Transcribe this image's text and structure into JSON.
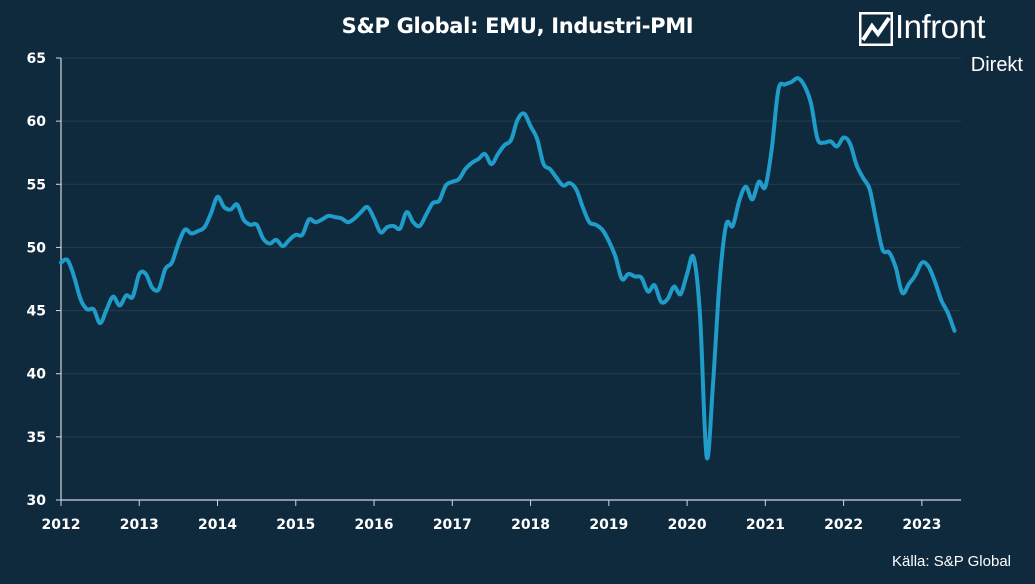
{
  "header": {
    "title": "S&P Global: EMU, Industri-PMI"
  },
  "brand": {
    "name": "Infront",
    "sub": "Direkt",
    "icon": "infront-logo-icon"
  },
  "footer": {
    "source": "Källa:  S&P Global"
  },
  "colors": {
    "background": "#0f2a3d",
    "line": "#1f9cc9",
    "axis": "#cfd8df",
    "text": "#ffffff"
  },
  "chart_data": {
    "type": "line",
    "title": "S&P Global: EMU, Industri-PMI",
    "xlabel": "",
    "ylabel": "",
    "ylim": [
      30,
      65
    ],
    "xlim": [
      "2012-01",
      "2023-07"
    ],
    "yticks": [
      30,
      35,
      40,
      45,
      50,
      55,
      60,
      65
    ],
    "xticks": [
      "2012",
      "2013",
      "2014",
      "2015",
      "2016",
      "2017",
      "2018",
      "2019",
      "2020",
      "2021",
      "2022",
      "2023"
    ],
    "grid": true,
    "legend": "none",
    "series": [
      {
        "x": [
          "2012-01",
          "2012-02",
          "2012-03",
          "2012-04",
          "2012-05",
          "2012-06",
          "2012-07",
          "2012-08",
          "2012-09",
          "2012-10",
          "2012-11",
          "2012-12",
          "2013-01",
          "2013-02",
          "2013-03",
          "2013-04",
          "2013-05",
          "2013-06",
          "2013-07",
          "2013-08",
          "2013-09",
          "2013-10",
          "2013-11",
          "2013-12",
          "2014-01",
          "2014-02",
          "2014-03",
          "2014-04",
          "2014-05",
          "2014-06",
          "2014-07",
          "2014-08",
          "2014-09",
          "2014-10",
          "2014-11",
          "2014-12",
          "2015-01",
          "2015-02",
          "2015-03",
          "2015-04",
          "2015-05",
          "2015-06",
          "2015-07",
          "2015-08",
          "2015-09",
          "2015-10",
          "2015-11",
          "2015-12",
          "2016-01",
          "2016-02",
          "2016-03",
          "2016-04",
          "2016-05",
          "2016-06",
          "2016-07",
          "2016-08",
          "2016-09",
          "2016-10",
          "2016-11",
          "2016-12",
          "2017-01",
          "2017-02",
          "2017-03",
          "2017-04",
          "2017-05",
          "2017-06",
          "2017-07",
          "2017-08",
          "2017-09",
          "2017-10",
          "2017-11",
          "2017-12",
          "2018-01",
          "2018-02",
          "2018-03",
          "2018-04",
          "2018-05",
          "2018-06",
          "2018-07",
          "2018-08",
          "2018-09",
          "2018-10",
          "2018-11",
          "2018-12",
          "2019-01",
          "2019-02",
          "2019-03",
          "2019-04",
          "2019-05",
          "2019-06",
          "2019-07",
          "2019-08",
          "2019-09",
          "2019-10",
          "2019-11",
          "2019-12",
          "2020-01",
          "2020-02",
          "2020-03",
          "2020-04",
          "2020-05",
          "2020-06",
          "2020-07",
          "2020-08",
          "2020-09",
          "2020-10",
          "2020-11",
          "2020-12",
          "2021-01",
          "2021-02",
          "2021-03",
          "2021-04",
          "2021-05",
          "2021-06",
          "2021-07",
          "2021-08",
          "2021-09",
          "2021-10",
          "2021-11",
          "2021-12",
          "2022-01",
          "2022-02",
          "2022-03",
          "2022-04",
          "2022-05",
          "2022-06",
          "2022-07",
          "2022-08",
          "2022-09",
          "2022-10",
          "2022-11",
          "2022-12",
          "2023-01",
          "2023-02",
          "2023-03",
          "2023-04",
          "2023-05",
          "2023-06"
        ],
        "values": [
          48.8,
          49.0,
          47.7,
          45.9,
          45.1,
          45.1,
          44.0,
          45.1,
          46.1,
          45.4,
          46.2,
          46.1,
          47.9,
          47.9,
          46.8,
          46.7,
          48.3,
          48.8,
          50.3,
          51.4,
          51.1,
          51.3,
          51.6,
          52.7,
          54.0,
          53.2,
          53.0,
          53.4,
          52.2,
          51.8,
          51.8,
          50.7,
          50.3,
          50.6,
          50.1,
          50.6,
          51.0,
          51.0,
          52.2,
          52.0,
          52.2,
          52.5,
          52.4,
          52.3,
          52.0,
          52.3,
          52.8,
          53.2,
          52.3,
          51.2,
          51.6,
          51.7,
          51.5,
          52.8,
          52.0,
          51.7,
          52.6,
          53.5,
          53.7,
          54.9,
          55.2,
          55.4,
          56.2,
          56.7,
          57.0,
          57.4,
          56.6,
          57.4,
          58.1,
          58.5,
          60.1,
          60.6,
          59.6,
          58.6,
          56.6,
          56.2,
          55.5,
          54.9,
          55.1,
          54.6,
          53.2,
          52.0,
          51.8,
          51.4,
          50.5,
          49.3,
          47.5,
          47.9,
          47.7,
          47.6,
          46.5,
          47.0,
          45.7,
          45.9,
          46.9,
          46.3,
          47.9,
          49.2,
          44.5,
          33.4,
          39.4,
          47.4,
          51.8,
          51.7,
          53.7,
          54.8,
          53.8,
          55.2,
          54.8,
          57.9,
          62.5,
          62.9,
          63.1,
          63.4,
          62.8,
          61.4,
          58.6,
          58.3,
          58.4,
          58.0,
          58.7,
          58.2,
          56.5,
          55.5,
          54.6,
          52.1,
          49.8,
          49.6,
          48.4,
          46.4,
          47.1,
          47.8,
          48.8,
          48.5,
          47.3,
          45.8,
          44.8,
          43.4
        ]
      }
    ]
  }
}
